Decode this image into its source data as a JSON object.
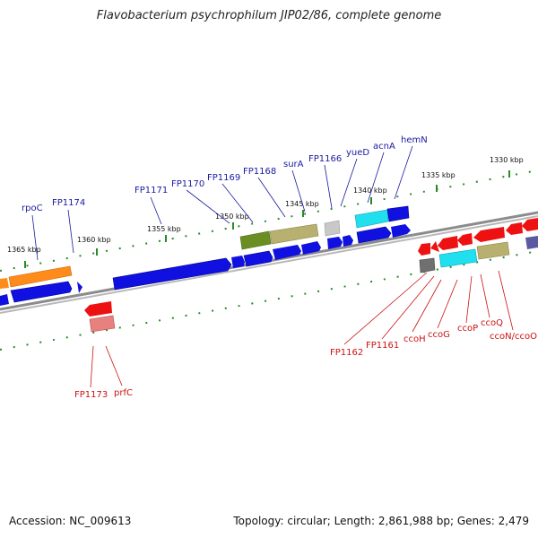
{
  "title": "Flavobacterium psychrophilum JIP02/86, complete genome",
  "footer": {
    "accession": "Accession: NC_009613",
    "summary": "Topology: circular; Length: 2,861,988 bp; Genes: 2,479"
  },
  "colors": {
    "backbone": "#8c8c8c",
    "tick": "#2a8a2a",
    "blue": "#1010e0",
    "orange": "#ff8c1a",
    "olive": "#6b8e23",
    "khaki": "#b8b070",
    "cyan": "#20e0f0",
    "gray": "#c8c8c8",
    "darkgray": "#707070",
    "red": "#ee1111",
    "pink": "#e98080",
    "slate": "#5a5aa0",
    "label_top": "#1a1aa0",
    "label_bottom": "#cc1111"
  },
  "kbp_labels": [
    "1330 kbp",
    "1335 kbp",
    "1340 kbp",
    "1345 kbp",
    "1350 kbp",
    "1355 kbp",
    "1360 kbp",
    "1365 kbp"
  ],
  "top_labels": [
    "rpoC",
    "FP1174",
    "FP1171",
    "FP1170",
    "FP1169",
    "FP1168",
    "surA",
    "FP1166",
    "yueD",
    "acnA",
    "hemN"
  ],
  "bottom_labels": [
    "FP1173",
    "prfC",
    "FP1162",
    "FP1161",
    "ccoH",
    "ccoG",
    "ccoP",
    "ccoQ",
    "ccoN/ccoO"
  ]
}
